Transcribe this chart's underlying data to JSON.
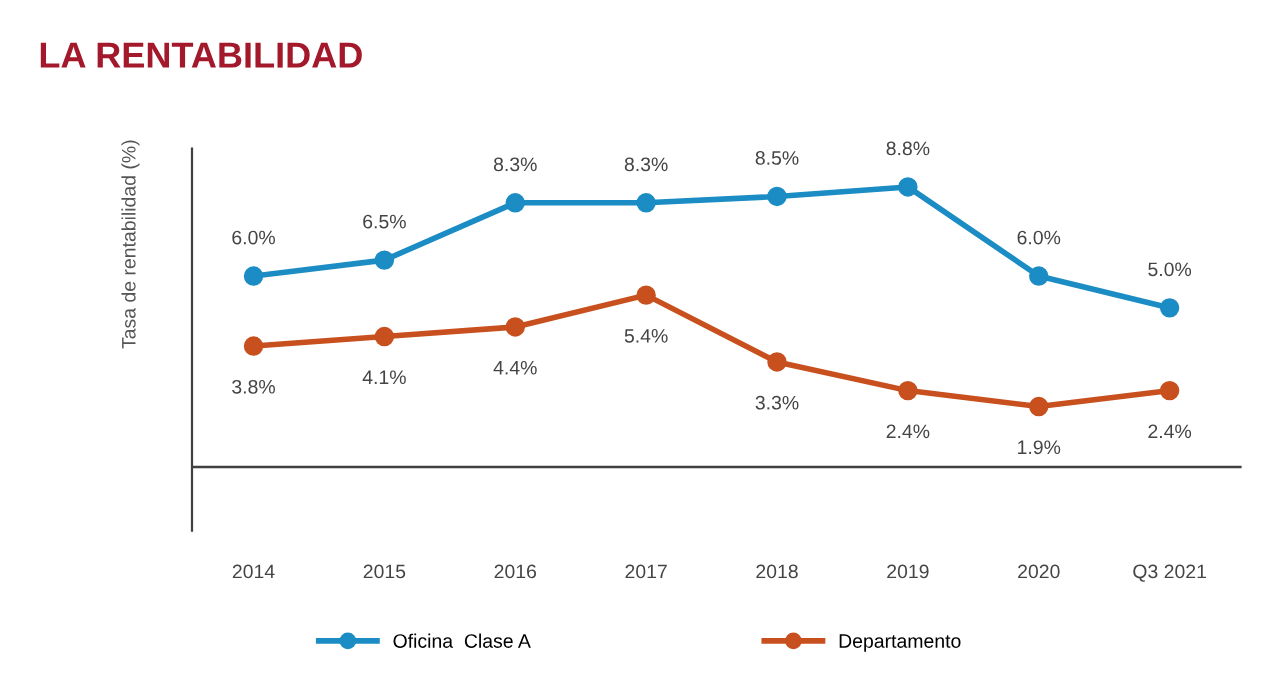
{
  "chart_data": {
    "type": "line",
    "title": "LA RENTABILIDAD",
    "ylabel": "Tasa de rentabilidad (%)",
    "categories": [
      "2014",
      "2015",
      "2016",
      "2017",
      "2018",
      "2019",
      "2020",
      "Q3 2021"
    ],
    "series": [
      {
        "name": "Oficina  Clase A",
        "color": "#1b8cc4",
        "values": [
          6.0,
          6.5,
          8.3,
          8.3,
          8.5,
          8.8,
          6.0,
          5.0
        ],
        "value_labels": [
          "6.0%",
          "6.5%",
          "8.3%",
          "8.3%",
          "8.5%",
          "8.8%",
          "6.0%",
          "5.0%"
        ]
      },
      {
        "name": "Departamento",
        "color": "#c8501e",
        "values": [
          3.8,
          4.1,
          4.4,
          5.4,
          3.3,
          2.4,
          1.9,
          2.4
        ],
        "value_labels": [
          "3.8%",
          "4.1%",
          "4.4%",
          "5.4%",
          "3.3%",
          "2.4%",
          "1.9%",
          "2.4%"
        ]
      }
    ],
    "ylim": [
      -2,
      10
    ],
    "tick_labels": "x",
    "grid": false,
    "legend": "bottom",
    "marker": "circle",
    "line_style": "solid",
    "ref_lines": [
      {
        "axis": "y",
        "value": 0,
        "color": "#404040"
      }
    ]
  }
}
